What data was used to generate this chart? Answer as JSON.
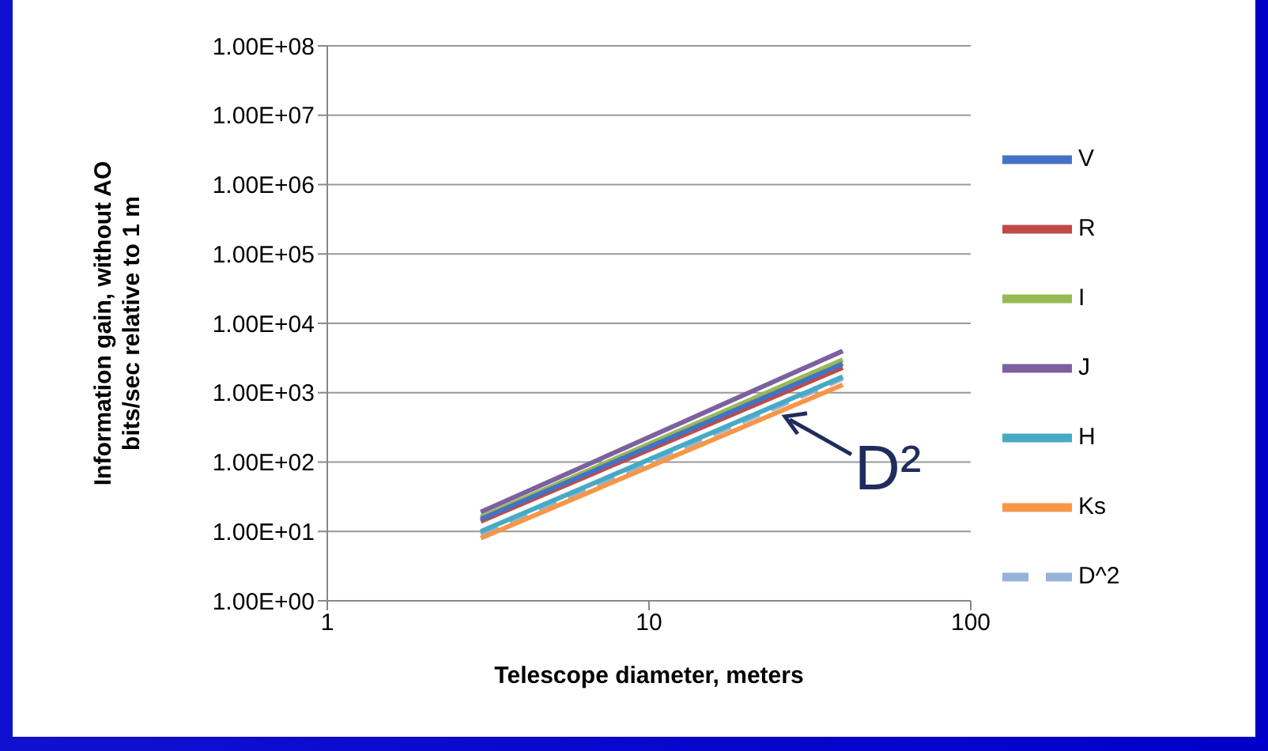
{
  "chart_data": {
    "type": "line",
    "xlabel": "Telescope diameter, meters",
    "ylabel": "Information gain, without AO\nbits/sec relative to 1 m",
    "log": "xy",
    "grid": "y",
    "legend": "right",
    "marker": "none",
    "xlim": [
      1,
      100
    ],
    "xticks": [
      1,
      10,
      100
    ],
    "ylim": [
      1,
      100000000
    ],
    "yticks": [
      {
        "value": 1,
        "label": "1.00E+00"
      },
      {
        "value": 10,
        "label": "1.00E+01"
      },
      {
        "value": 100,
        "label": "1.00E+02"
      },
      {
        "value": 1000,
        "label": "1.00E+03"
      },
      {
        "value": 10000,
        "label": "1.00E+04"
      },
      {
        "value": 100000,
        "label": "1.00E+05"
      },
      {
        "value": 1000000,
        "label": "1.00E+06"
      },
      {
        "value": 10000000,
        "label": "1.00E+07"
      },
      {
        "value": 100000000,
        "label": "1.00E+08"
      }
    ],
    "x": [
      3,
      40
    ],
    "series": [
      {
        "name": "V",
        "color": "#4472c4",
        "values": [
          15,
          2600
        ]
      },
      {
        "name": "R",
        "color": "#be4b48",
        "values": [
          14,
          2300
        ]
      },
      {
        "name": "I",
        "color": "#98b954",
        "values": [
          16,
          3000
        ]
      },
      {
        "name": "J",
        "color": "#7d60a0",
        "values": [
          19,
          4000
        ]
      },
      {
        "name": "H",
        "color": "#46aac5",
        "values": [
          10,
          1700
        ]
      },
      {
        "name": "Ks",
        "color": "#f79646",
        "values": [
          8,
          1300
        ]
      },
      {
        "name": "D^2",
        "color": "#95b3d7",
        "values": [
          9,
          1600
        ],
        "line_style": "dashed"
      }
    ],
    "annotations": [
      {
        "text": "D²",
        "x": 25,
        "y": 560
      }
    ]
  }
}
